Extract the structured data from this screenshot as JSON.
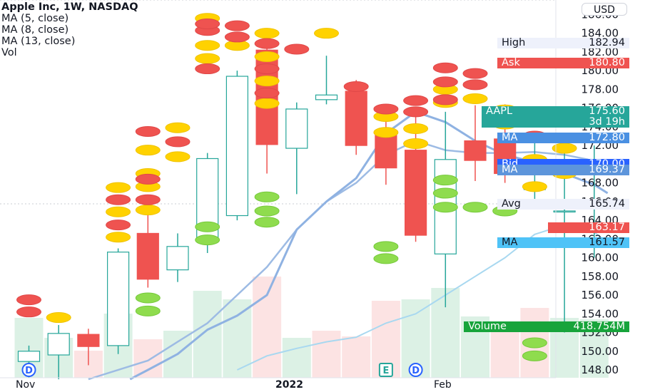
{
  "legend": {
    "title": "Apple Inc, 1W, NASDAQ",
    "ma5": "MA (5, close)",
    "ma8": "MA (8, close)",
    "ma13": "MA (13, close)",
    "vol": "Vol"
  },
  "currency_button": "USD",
  "chart_data": {
    "type": "candlestick",
    "title": "Apple Inc, 1W, NASDAQ",
    "y_range": [
      147,
      187
    ],
    "y_ticks": [
      {
        "label": "186.00",
        "v": 186
      },
      {
        "label": "184.00",
        "v": 184
      },
      {
        "label": "182.00",
        "v": 182
      },
      {
        "label": "180.00",
        "v": 180
      },
      {
        "label": "178.00",
        "v": 178
      },
      {
        "label": "176.00",
        "v": 176
      },
      {
        "label": "174.00",
        "v": 174
      },
      {
        "label": "172.00",
        "v": 172
      },
      {
        "label": "170.00",
        "v": 170
      },
      {
        "label": "168.00",
        "v": 168
      },
      {
        "label": "166.00",
        "v": 166
      },
      {
        "label": "164.00",
        "v": 164
      },
      {
        "label": "162.00",
        "v": 162
      },
      {
        "label": "160.00",
        "v": 160
      },
      {
        "label": "158.00",
        "v": 158
      },
      {
        "label": "156.00",
        "v": 156
      },
      {
        "label": "154.00",
        "v": 154
      },
      {
        "label": "152.00",
        "v": 152
      },
      {
        "label": "150.00",
        "v": 150
      },
      {
        "label": "148.00",
        "v": 148
      }
    ],
    "x_labels": [
      "Nov",
      "2022",
      "Feb"
    ],
    "candles": [
      {
        "o": 148.9,
        "h": 150.6,
        "l": 147.2,
        "c": 150.0
      },
      {
        "o": 149.6,
        "h": 152.8,
        "l": 147.0,
        "c": 151.9
      },
      {
        "o": 151.8,
        "h": 152.4,
        "l": 148.5,
        "c": 150.5
      },
      {
        "o": 150.6,
        "h": 161.0,
        "l": 149.7,
        "c": 160.6
      },
      {
        "o": 162.6,
        "h": 166.5,
        "l": 156.8,
        "c": 157.7
      },
      {
        "o": 158.7,
        "h": 162.6,
        "l": 157.4,
        "c": 161.2
      },
      {
        "o": 161.8,
        "h": 171.2,
        "l": 160.5,
        "c": 170.6
      },
      {
        "o": 164.5,
        "h": 180.0,
        "l": 164.0,
        "c": 179.4
      },
      {
        "o": 182.2,
        "h": 182.9,
        "l": 169.0,
        "c": 172.1
      },
      {
        "o": 171.7,
        "h": 176.6,
        "l": 166.8,
        "c": 175.9
      },
      {
        "o": 176.9,
        "h": 181.6,
        "l": 176.4,
        "c": 177.4
      },
      {
        "o": 177.8,
        "h": 179.0,
        "l": 171.0,
        "c": 172.0
      },
      {
        "o": 173.1,
        "h": 175.3,
        "l": 167.8,
        "c": 169.6
      },
      {
        "o": 171.5,
        "h": 175.7,
        "l": 161.7,
        "c": 162.4
      },
      {
        "o": 160.4,
        "h": 175.6,
        "l": 154.7,
        "c": 170.5
      },
      {
        "o": 172.5,
        "h": 176.3,
        "l": 168.2,
        "c": 170.4
      },
      {
        "o": 172.7,
        "h": 176.4,
        "l": 168.0,
        "c": 169.0
      },
      {
        "o": 167.4,
        "h": 173.0,
        "l": 166.0,
        "c": 167.4
      },
      {
        "o": 165.0,
        "h": 172.2,
        "l": 152.0,
        "c": 165.0
      },
      {
        "o": 163.2,
        "h": 172.0,
        "l": 160.0,
        "c": 163.2
      }
    ],
    "volume": [
      {
        "v": 0.42,
        "up": true
      },
      {
        "v": 0.28,
        "up": true
      },
      {
        "v": 0.19,
        "up": false
      },
      {
        "v": 0.45,
        "up": true
      },
      {
        "v": 0.27,
        "up": false
      },
      {
        "v": 0.33,
        "up": true
      },
      {
        "v": 0.61,
        "up": true
      },
      {
        "v": 0.55,
        "up": true
      },
      {
        "v": 0.71,
        "up": false
      },
      {
        "v": 0.28,
        "up": true
      },
      {
        "v": 0.33,
        "up": false
      },
      {
        "v": 0.29,
        "up": false
      },
      {
        "v": 0.54,
        "up": false
      },
      {
        "v": 0.55,
        "up": true
      },
      {
        "v": 0.63,
        "up": true
      },
      {
        "v": 0.43,
        "up": true
      },
      {
        "v": 0.39,
        "up": false
      },
      {
        "v": 0.49,
        "up": false
      },
      {
        "v": 0.42,
        "up": true
      },
      {
        "v": 0.41,
        "up": true
      }
    ],
    "ma_fast": [
      {
        "i": 3.4,
        "v": 147.0
      },
      {
        "i": 4,
        "v": 148.0
      },
      {
        "i": 5,
        "v": 149.7
      },
      {
        "i": 6,
        "v": 152.3
      },
      {
        "i": 7,
        "v": 153.8
      },
      {
        "i": 8,
        "v": 156.0
      },
      {
        "i": 9,
        "v": 163.0
      },
      {
        "i": 10,
        "v": 166.0
      },
      {
        "i": 11,
        "v": 168.5
      },
      {
        "i": 12,
        "v": 173.3
      },
      {
        "i": 13,
        "v": 175.6
      },
      {
        "i": 14,
        "v": 174.5
      },
      {
        "i": 15,
        "v": 172.5
      },
      {
        "i": 16,
        "v": 171.0
      },
      {
        "i": 17,
        "v": 170.2
      },
      {
        "i": 18,
        "v": 169.0
      },
      {
        "i": 19,
        "v": 167.8
      },
      {
        "i": 19.45,
        "v": 166.9
      }
    ],
    "ma_mid": [
      {
        "i": 2,
        "v": 147.0
      },
      {
        "i": 4,
        "v": 149.0
      },
      {
        "i": 5,
        "v": 151.0
      },
      {
        "i": 6,
        "v": 153.0
      },
      {
        "i": 7,
        "v": 156.0
      },
      {
        "i": 8,
        "v": 159.0
      },
      {
        "i": 9,
        "v": 163.0
      },
      {
        "i": 10,
        "v": 166.0
      },
      {
        "i": 11,
        "v": 168.0
      },
      {
        "i": 12,
        "v": 171.0
      },
      {
        "i": 13,
        "v": 172.5
      },
      {
        "i": 14,
        "v": 171.5
      },
      {
        "i": 15,
        "v": 171.2
      },
      {
        "i": 16,
        "v": 171.2
      },
      {
        "i": 17,
        "v": 171.3
      },
      {
        "i": 18,
        "v": 171.0
      },
      {
        "i": 18.8,
        "v": 170.5
      }
    ],
    "ma_slow": [
      {
        "i": 7,
        "v": 148.0
      },
      {
        "i": 8,
        "v": 149.5
      },
      {
        "i": 9,
        "v": 150.3
      },
      {
        "i": 10,
        "v": 151.0
      },
      {
        "i": 11,
        "v": 151.5
      },
      {
        "i": 12,
        "v": 153.0
      },
      {
        "i": 13,
        "v": 154.0
      },
      {
        "i": 14,
        "v": 156.0
      },
      {
        "i": 15,
        "v": 158.0
      },
      {
        "i": 16,
        "v": 160.0
      },
      {
        "i": 17,
        "v": 162.5
      },
      {
        "i": 18,
        "v": 163.5
      },
      {
        "i": 18.8,
        "v": 163.2
      },
      {
        "i": 19.5,
        "v": 161.5
      }
    ],
    "dot_groups": [
      {
        "i": 0,
        "kind": "red",
        "v": [
          154.2,
          155.5
        ]
      },
      {
        "i": 1,
        "kind": "yellow",
        "v": [
          153.6
        ]
      },
      {
        "i": 3,
        "kind": "yellow",
        "v": [
          162.2,
          164.9,
          167.5
        ]
      },
      {
        "i": 3,
        "kind": "red",
        "v": [
          163.5,
          166.2
        ]
      },
      {
        "i": 4,
        "kind": "yellow",
        "v": [
          165.1,
          167.6,
          169.0,
          171.5
        ]
      },
      {
        "i": 4,
        "kind": "red",
        "v": [
          166.2,
          168.4,
          173.5
        ]
      },
      {
        "i": 4,
        "kind": "green",
        "v": [
          154.3,
          155.7
        ]
      },
      {
        "i": 5,
        "kind": "yellow",
        "v": [
          170.8,
          173.9
        ]
      },
      {
        "i": 5,
        "kind": "red",
        "v": [
          172.4
        ]
      },
      {
        "i": 6,
        "kind": "yellow",
        "v": [
          181.3,
          182.7,
          185.6
        ]
      },
      {
        "i": 6,
        "kind": "red",
        "v": [
          180.2,
          184.3,
          185.0
        ]
      },
      {
        "i": 6,
        "kind": "green",
        "v": [
          161.9,
          163.3
        ]
      },
      {
        "i": 7,
        "kind": "yellow",
        "v": [
          182.7
        ]
      },
      {
        "i": 7,
        "kind": "red",
        "v": [
          183.6,
          184.8
        ]
      },
      {
        "i": 8,
        "kind": "yellow",
        "v": [
          176.5,
          178.9,
          181.5,
          184.0
        ]
      },
      {
        "i": 8,
        "kind": "red",
        "v": [
          177.6,
          180.2,
          182.9
        ]
      },
      {
        "i": 8,
        "kind": "green",
        "v": [
          163.8,
          165.0,
          166.5
        ]
      },
      {
        "i": 9,
        "kind": "red",
        "v": [
          182.3
        ]
      },
      {
        "i": 10,
        "kind": "yellow",
        "v": [
          184.0
        ]
      },
      {
        "i": 11,
        "kind": "red",
        "v": [
          178.3
        ]
      },
      {
        "i": 12,
        "kind": "yellow",
        "v": [
          173.4,
          175.1
        ]
      },
      {
        "i": 12,
        "kind": "red",
        "v": [
          175.9
        ]
      },
      {
        "i": 12,
        "kind": "green",
        "v": [
          159.9,
          161.2
        ]
      },
      {
        "i": 13,
        "kind": "yellow",
        "v": [
          172.2,
          173.8
        ]
      },
      {
        "i": 13,
        "kind": "red",
        "v": [
          175.6,
          176.8
        ]
      },
      {
        "i": 14,
        "kind": "yellow",
        "v": [
          176.6,
          178.0
        ]
      },
      {
        "i": 14,
        "kind": "red",
        "v": [
          176.9,
          178.8,
          180.3
        ]
      },
      {
        "i": 14,
        "kind": "green",
        "v": [
          165.4,
          166.9,
          168.3
        ]
      },
      {
        "i": 15,
        "kind": "yellow",
        "v": [
          177.0
        ]
      },
      {
        "i": 15,
        "kind": "red",
        "v": [
          178.5,
          179.7
        ]
      },
      {
        "i": 15,
        "kind": "green",
        "v": [
          165.4
        ]
      },
      {
        "i": 16,
        "kind": "yellow",
        "v": [
          174.3,
          175.8
        ]
      },
      {
        "i": 16,
        "kind": "green",
        "v": [
          165.0
        ]
      },
      {
        "i": 17,
        "kind": "yellow",
        "v": [
          167.6,
          170.5
        ]
      },
      {
        "i": 17,
        "kind": "red",
        "v": [
          169.6,
          173.0
        ]
      },
      {
        "i": 17,
        "kind": "green",
        "v": [
          149.5,
          150.9
        ]
      },
      {
        "i": 18,
        "kind": "yellow",
        "v": [
          169.0,
          171.7
        ]
      }
    ],
    "price_labels": [
      {
        "k": "High",
        "v": "182.94",
        "style": "plain",
        "price": 182.94
      },
      {
        "k": "Ask",
        "v": "180.80",
        "style": "red",
        "price": 180.8
      },
      {
        "k": "AAPL",
        "v": "175.60",
        "sub": "3d 19h",
        "style": "teal",
        "price": 175.6
      },
      {
        "k": "MA",
        "v": "172.80",
        "style": "blue",
        "price": 172.8
      },
      {
        "k": "Bid",
        "v": "170.00",
        "style": "darkblue",
        "price": 170.0
      },
      {
        "k": "MA",
        "v": "169.37",
        "style": "steel",
        "price": 169.37
      },
      {
        "k": "Avg",
        "v": "165.74",
        "style": "plain",
        "price": 165.74
      },
      {
        "k": "",
        "v": "163.17",
        "style": "red",
        "price": 163.17
      },
      {
        "k": "MA",
        "v": "161.57",
        "style": "lightblue",
        "price": 161.57
      },
      {
        "k": "Volume",
        "v": "418.754M",
        "style": "green",
        "price": 152.6
      }
    ],
    "events": [
      {
        "i": 0,
        "letter": "D",
        "kind": "dividend"
      },
      {
        "i": 12,
        "letter": "E",
        "kind": "earnings"
      },
      {
        "i": 13,
        "letter": "D",
        "kind": "dividend"
      }
    ]
  }
}
